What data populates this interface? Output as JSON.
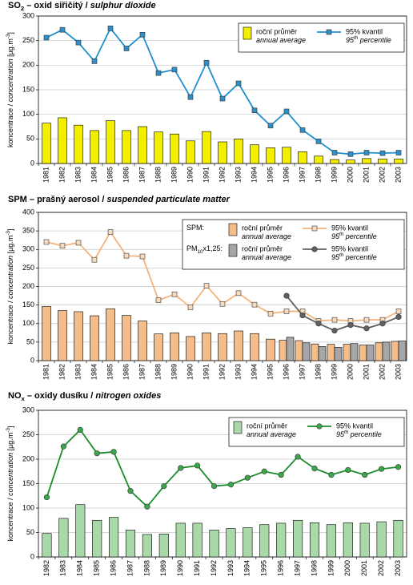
{
  "chart_data": [
    {
      "type": "combo",
      "title": [
        {
          "text": "SO"
        },
        {
          "text": "2",
          "style": "sub"
        },
        {
          "text": " – oxid siřičitý / "
        },
        {
          "text": "sulphur dioxide",
          "style": "italic"
        }
      ],
      "y_label": [
        {
          "text": "koncentrace / "
        },
        {
          "text": "concentration",
          "style": "italic"
        },
        {
          "text": " [µg.m"
        },
        {
          "text": "-3",
          "style": "sup"
        },
        {
          "text": "]"
        }
      ],
      "categories": [
        "1981",
        "1982",
        "1983",
        "1984",
        "1985",
        "1986",
        "1987",
        "1988",
        "1989",
        "1990",
        "1991",
        "1992",
        "1993",
        "1994",
        "1995",
        "1996",
        "1997",
        "1998",
        "1999",
        "2000",
        "2001",
        "2002",
        "2003"
      ],
      "series": [
        {
          "name": "roční průměr",
          "name_en": [
            {
              "text": "annual average"
            }
          ],
          "type": "bar",
          "color": "#f2ee00",
          "values": [
            82,
            93,
            78,
            67,
            87,
            67,
            75,
            64,
            60,
            46,
            65,
            44,
            50,
            38,
            32,
            33,
            24,
            15,
            8,
            7,
            10,
            9,
            9
          ]
        },
        {
          "name": "95% kvantil",
          "name_en": [
            {
              "text": "95"
            },
            {
              "text": "th",
              "style": "sup"
            },
            {
              "text": " percentile"
            }
          ],
          "type": "line",
          "color": "#1f8fcf",
          "marker": "square",
          "marker_color": "#2f8fc8",
          "values": [
            256,
            272,
            246,
            208,
            275,
            234,
            262,
            184,
            191,
            135,
            205,
            132,
            163,
            108,
            77,
            106,
            68,
            45,
            22,
            19,
            22,
            21,
            22
          ]
        }
      ],
      "ylim": [
        0,
        300
      ],
      "yticks": [
        0,
        50,
        100,
        150,
        200,
        250,
        300
      ],
      "grid": true,
      "legend": "upper right"
    },
    {
      "type": "combo",
      "title": [
        {
          "text": "SPM – prašný aerosol / "
        },
        {
          "text": "suspended particulate matter",
          "style": "italic"
        }
      ],
      "y_label": [
        {
          "text": "koncentrace / "
        },
        {
          "text": "concentration",
          "style": "italic"
        },
        {
          "text": " [µg.m"
        },
        {
          "text": "-3",
          "style": "sup"
        },
        {
          "text": "]"
        }
      ],
      "categories": [
        "1981",
        "1982",
        "1983",
        "1984",
        "1985",
        "1986",
        "1987",
        "1988",
        "1989",
        "1990",
        "1991",
        "1992",
        "1993",
        "1994",
        "1995",
        "1996",
        "1997",
        "1998",
        "1999",
        "2000",
        "2001",
        "2002",
        "2003"
      ],
      "legend_groups": [
        [
          {
            "text": "SPM:"
          }
        ],
        [
          {
            "text": "PM"
          },
          {
            "text": "10",
            "style": "sub"
          },
          {
            "text": "x1,25:"
          }
        ]
      ],
      "series": [
        {
          "name": "roční průměr",
          "name_en": [
            {
              "text": "annual average"
            }
          ],
          "type": "bar",
          "group": 0,
          "color": "#f5bd8c",
          "values": [
            146,
            135,
            132,
            121,
            140,
            122,
            107,
            72,
            75,
            65,
            75,
            73,
            80,
            73,
            58,
            55,
            54,
            45,
            44,
            44,
            42,
            48,
            52
          ]
        },
        {
          "name": "roční průměr",
          "name_en": [
            {
              "text": "annual average"
            }
          ],
          "type": "bar",
          "group": 1,
          "color": "#a6a6a6",
          "values": [
            null,
            null,
            null,
            null,
            null,
            null,
            null,
            null,
            null,
            null,
            null,
            null,
            null,
            null,
            null,
            63,
            48,
            38,
            36,
            46,
            42,
            50,
            53
          ]
        },
        {
          "name": "95% kvantil",
          "name_en": [
            {
              "text": "95"
            },
            {
              "text": "th",
              "style": "sup"
            },
            {
              "text": " percentile"
            }
          ],
          "type": "line",
          "group": 0,
          "color": "#f5b27a",
          "marker": "square",
          "marker_color": "#f9dcbd",
          "values": [
            320,
            310,
            318,
            272,
            347,
            283,
            281,
            163,
            179,
            144,
            202,
            153,
            182,
            151,
            127,
            133,
            133,
            107,
            110,
            107,
            110,
            110,
            133
          ]
        },
        {
          "name": "95% kvantil",
          "name_en": [
            {
              "text": "95"
            },
            {
              "text": "th",
              "style": "sup"
            },
            {
              "text": " percentile"
            }
          ],
          "type": "line",
          "group": 1,
          "color": "#606060",
          "marker": "circle",
          "marker_color": "#606060",
          "values": [
            null,
            null,
            null,
            null,
            null,
            null,
            null,
            null,
            null,
            null,
            null,
            null,
            null,
            null,
            null,
            175,
            122,
            100,
            81,
            96,
            87,
            100,
            118
          ]
        }
      ],
      "ylim": [
        0,
        400
      ],
      "yticks": [
        0,
        50,
        100,
        150,
        200,
        250,
        300,
        350,
        400
      ],
      "grid": true,
      "legend": "upper right"
    },
    {
      "type": "combo",
      "title": [
        {
          "text": "NO"
        },
        {
          "text": "x",
          "style": "sub"
        },
        {
          "text": " – oxidy dusíku / "
        },
        {
          "text": "nitrogen oxides",
          "style": "italic"
        }
      ],
      "y_label": [
        {
          "text": "koncentrace / "
        },
        {
          "text": "concentration",
          "style": "italic"
        },
        {
          "text": " [µg.m"
        },
        {
          "text": "-3",
          "style": "sup"
        },
        {
          "text": "]"
        }
      ],
      "categories": [
        "1982",
        "1983",
        "1984",
        "1985",
        "1986",
        "1987",
        "1988",
        "1989",
        "1990",
        "1991",
        "1992",
        "1993",
        "1994",
        "1995",
        "1996",
        "1997",
        "1998",
        "1999",
        "2000",
        "2001",
        "2002",
        "2003"
      ],
      "series": [
        {
          "name": "roční průměr",
          "name_en": [
            {
              "text": "annual average"
            }
          ],
          "type": "bar",
          "color": "#a9d9a9",
          "values": [
            48,
            79,
            107,
            75,
            81,
            55,
            46,
            47,
            69,
            69,
            55,
            58,
            60,
            66,
            69,
            75,
            70,
            66,
            70,
            69,
            72,
            75
          ]
        },
        {
          "name": "95% kvantil",
          "name_en": [
            {
              "text": "95"
            },
            {
              "text": "th",
              "style": "sup"
            },
            {
              "text": " percentile"
            }
          ],
          "type": "line",
          "color": "#1a8c2a",
          "marker": "circle",
          "marker_color": "#3aa84a",
          "values": [
            122,
            226,
            260,
            212,
            215,
            135,
            103,
            145,
            182,
            187,
            145,
            148,
            162,
            175,
            168,
            205,
            181,
            168,
            178,
            168,
            180,
            184
          ]
        }
      ],
      "ylim": [
        0,
        300
      ],
      "yticks": [
        0,
        50,
        100,
        150,
        200,
        250,
        300
      ],
      "grid": true,
      "legend": "upper right"
    }
  ]
}
